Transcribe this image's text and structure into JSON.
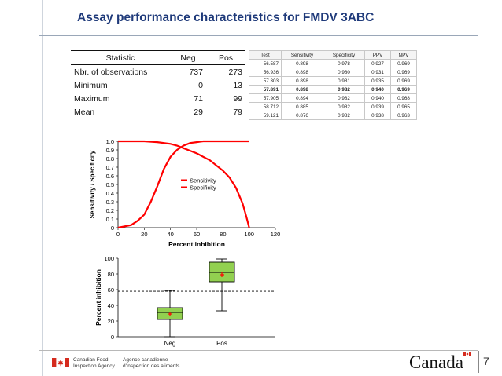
{
  "slide": {
    "title": "Assay performance characteristics for FMDV 3ABC",
    "page_number": "7"
  },
  "stats_table": {
    "headers": [
      "Statistic",
      "Neg",
      "Pos"
    ],
    "rows": [
      [
        "Nbr. of observations",
        "737",
        "273"
      ],
      [
        "Minimum",
        "0",
        "13"
      ],
      [
        "Maximum",
        "71",
        "99"
      ],
      [
        "Mean",
        "29",
        "79"
      ]
    ]
  },
  "perf_table": {
    "headers": [
      "Test",
      "Sensitivity",
      "Specificity",
      "PPV",
      "NPV"
    ],
    "rows": [
      [
        "56.587",
        "0.898",
        "0.978",
        "0.927",
        "0.969"
      ],
      [
        "56.936",
        "0.898",
        "0.980",
        "0.931",
        "0.969"
      ],
      [
        "57.303",
        "0.898",
        "0.981",
        "0.935",
        "0.969"
      ],
      [
        "57.891",
        "0.898",
        "0.982",
        "0.940",
        "0.969"
      ],
      [
        "57.905",
        "0.894",
        "0.982",
        "0.940",
        "0.968"
      ],
      [
        "58.712",
        "0.885",
        "0.982",
        "0.939",
        "0.965"
      ],
      [
        "59.121",
        "0.876",
        "0.982",
        "0.938",
        "0.963"
      ]
    ],
    "bold_row_index": 3
  },
  "chart_data": [
    {
      "type": "line",
      "title": "",
      "xlabel": "Percent inhibition",
      "ylabel": "Sensitivity / Specificity",
      "xlim": [
        0,
        120
      ],
      "ylim": [
        0,
        1.0
      ],
      "xticks": [
        "0",
        "20",
        "40",
        "60",
        "80",
        "100",
        "120"
      ],
      "yticks": [
        "0",
        "0.1",
        "0.2",
        "0.3",
        "0.4",
        "0.5",
        "0.6",
        "0.7",
        "0.8",
        "0.9",
        "1.0"
      ],
      "legend": [
        "Sensitivity",
        "Specificity"
      ],
      "legend_placement": "center",
      "series": [
        {
          "name": "Sensitivity",
          "x": [
            0,
            20,
            30,
            40,
            45,
            50,
            55,
            60,
            65,
            70,
            75,
            80,
            85,
            90,
            95,
            98,
            100
          ],
          "y": [
            1.0,
            1.0,
            0.99,
            0.97,
            0.95,
            0.92,
            0.89,
            0.86,
            0.82,
            0.78,
            0.72,
            0.66,
            0.58,
            0.46,
            0.28,
            0.12,
            0.0
          ]
        },
        {
          "name": "Specificity",
          "x": [
            0,
            10,
            15,
            20,
            25,
            30,
            35,
            40,
            45,
            50,
            55,
            60,
            65,
            70,
            80,
            100
          ],
          "y": [
            0.0,
            0.03,
            0.08,
            0.15,
            0.3,
            0.48,
            0.68,
            0.82,
            0.9,
            0.95,
            0.98,
            0.99,
            1.0,
            1.0,
            1.0,
            1.0
          ]
        }
      ]
    },
    {
      "type": "box",
      "title": "",
      "xlabel": "",
      "ylabel": "Percent inhibition",
      "ylim": [
        0,
        100
      ],
      "yticks": [
        "0",
        "20",
        "40",
        "60",
        "80",
        "100"
      ],
      "categories": [
        "Neg",
        "Pos"
      ],
      "boxes": [
        {
          "name": "Neg",
          "min": 0,
          "q1": 22,
          "median": 31,
          "q3": 37,
          "max": 59,
          "mean": 29
        },
        {
          "name": "Pos",
          "min": 33,
          "q1": 70,
          "median": 82,
          "q3": 95,
          "max": 99,
          "mean": 79
        }
      ],
      "cutoff": 57.9
    }
  ],
  "footer": {
    "dept_en_line1": "Canadian Food",
    "dept_en_line2": "Inspection Agency",
    "dept_fr_line1": "Agence canadienne",
    "dept_fr_line2": "d'inspection des aliments",
    "wordmark": "Canada"
  },
  "colors": {
    "title": "#1f3a7a",
    "curve": "#ff0000",
    "box_fill": "#92d050",
    "mean_marker": "#ff0000",
    "flag_red": "#d52b1e"
  }
}
